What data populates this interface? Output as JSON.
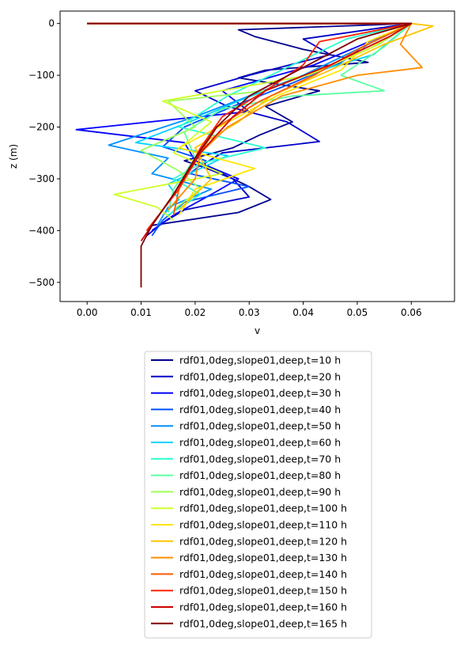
{
  "chart_data": {
    "type": "line",
    "title": "",
    "xlabel": "v",
    "ylabel": "z (m)",
    "xlim": [
      -0.005,
      0.068
    ],
    "ylim": [
      -537,
      24
    ],
    "xticks": [
      0.0,
      0.01,
      0.02,
      0.03,
      0.04,
      0.05,
      0.06
    ],
    "xtick_labels": [
      "0.00",
      "0.01",
      "0.02",
      "0.03",
      "0.04",
      "0.05",
      "0.06"
    ],
    "yticks": [
      0,
      -100,
      -200,
      -300,
      -400,
      -500
    ],
    "ytick_labels": [
      "0",
      "−100",
      "−200",
      "−300",
      "−400",
      "−500"
    ],
    "grid": false,
    "legend_position": "below-plot",
    "series": [
      {
        "name": "rdf01,0deg,slope01,deep,t=10 h",
        "color": "#00008f",
        "x": [
          0.0,
          0.06,
          0.028,
          0.031,
          0.04,
          0.052,
          0.033,
          0.028,
          0.043,
          0.033,
          0.038,
          0.032,
          0.027,
          0.018,
          0.025,
          0.03,
          0.034,
          0.028,
          0.012
        ],
        "y": [
          0,
          0,
          -12,
          -25,
          -50,
          -75,
          -90,
          -105,
          -130,
          -160,
          -190,
          -215,
          -240,
          -265,
          -290,
          -315,
          -340,
          -365,
          -390
        ]
      },
      {
        "name": "rdf01,0deg,slope01,deep,t=20 h",
        "color": "#0000c8",
        "x": [
          0.0,
          0.06,
          0.04,
          0.045,
          0.03,
          0.02,
          0.026,
          0.037,
          0.043,
          0.025,
          0.021,
          0.027,
          0.03,
          0.018,
          0.014,
          0.011
        ],
        "y": [
          0,
          0,
          -30,
          -60,
          -100,
          -130,
          -160,
          -190,
          -228,
          -250,
          -275,
          -300,
          -335,
          -360,
          -385,
          -410
        ]
      },
      {
        "name": "rdf01,0deg,slope01,deep,t=30 h",
        "color": "#0000ff",
        "x": [
          0.0,
          0.06,
          0.05,
          0.042,
          0.025,
          0.03,
          -0.002,
          0.018,
          0.02,
          0.028,
          0.023,
          0.016,
          0.012
        ],
        "y": [
          0,
          0,
          -45,
          -80,
          -130,
          -170,
          -205,
          -230,
          -265,
          -300,
          -330,
          -370,
          -400
        ]
      },
      {
        "name": "rdf01,0deg,slope01,deep,t=40 h",
        "color": "#0050ff",
        "x": [
          0.0,
          0.06,
          0.052,
          0.047,
          0.038,
          0.027,
          0.018,
          0.014,
          0.022,
          0.019,
          0.03,
          0.018,
          0.014,
          0.012
        ],
        "y": [
          0,
          0,
          -40,
          -75,
          -115,
          -160,
          -200,
          -238,
          -265,
          -290,
          -315,
          -345,
          -380,
          -410
        ]
      },
      {
        "name": "rdf01,0deg,slope01,deep,t=50 h",
        "color": "#0090ff",
        "x": [
          0.0,
          0.06,
          0.05,
          0.04,
          0.03,
          0.02,
          0.004,
          0.015,
          0.012,
          0.023,
          0.015,
          0.013
        ],
        "y": [
          0,
          0,
          -50,
          -100,
          -140,
          -180,
          -235,
          -260,
          -290,
          -320,
          -355,
          -390
        ]
      },
      {
        "name": "rdf01,0deg,slope01,deep,t=60 h",
        "color": "#00d4ff",
        "x": [
          0.0,
          0.06,
          0.053,
          0.04,
          0.028,
          0.019,
          0.009,
          0.026,
          0.02,
          0.015,
          0.017,
          0.014
        ],
        "y": [
          0,
          0,
          -60,
          -100,
          -150,
          -190,
          -230,
          -255,
          -285,
          -310,
          -340,
          -370
        ]
      },
      {
        "name": "rdf01,0deg,slope01,deep,t=70 h",
        "color": "#29ffce",
        "x": [
          0.0,
          0.06,
          0.048,
          0.037,
          0.026,
          0.017,
          0.033,
          0.021,
          0.016,
          0.021,
          0.015
        ],
        "y": [
          0,
          0,
          -30,
          -85,
          -140,
          -200,
          -240,
          -270,
          -300,
          -330,
          -370
        ]
      },
      {
        "name": "rdf01,0deg,slope01,deep,t=80 h",
        "color": "#5cffa0",
        "x": [
          0.0,
          0.06,
          0.055,
          0.047,
          0.055,
          0.038,
          0.025,
          0.018,
          0.02,
          0.016,
          0.015
        ],
        "y": [
          0,
          0,
          -45,
          -100,
          -130,
          -140,
          -165,
          -210,
          -260,
          -320,
          -365
        ]
      },
      {
        "name": "rdf01,0deg,slope01,deep,t=90 h",
        "color": "#9cff5a",
        "x": [
          0.0,
          0.06,
          0.054,
          0.043,
          0.033,
          0.015,
          0.02,
          0.01,
          0.017,
          0.021,
          0.016
        ],
        "y": [
          0,
          0,
          -40,
          -90,
          -130,
          -150,
          -200,
          -245,
          -285,
          -320,
          -360
        ]
      },
      {
        "name": "rdf01,0deg,slope01,deep,t=100 h",
        "color": "#ceff29",
        "x": [
          0.0,
          0.06,
          0.052,
          0.041,
          0.014,
          0.023,
          0.016,
          0.025,
          0.005,
          0.013,
          0.016
        ],
        "y": [
          0,
          0,
          -50,
          -100,
          -150,
          -190,
          -250,
          -290,
          -330,
          -355,
          -380
        ]
      },
      {
        "name": "rdf01,0deg,slope01,deep,t=110 h",
        "color": "#ffe600",
        "x": [
          0.0,
          0.06,
          0.052,
          0.047,
          0.035,
          0.028,
          0.017,
          0.031,
          0.02,
          0.017
        ],
        "y": [
          0,
          0,
          -35,
          -90,
          -140,
          -180,
          -240,
          -280,
          -320,
          -370
        ]
      },
      {
        "name": "rdf01,0deg,slope01,deep,t=120 h",
        "color": "#ffc400",
        "x": [
          0.0,
          0.06,
          0.064,
          0.055,
          0.045,
          0.034,
          0.028,
          0.02,
          0.023,
          0.017
        ],
        "y": [
          0,
          0,
          -5,
          -40,
          -90,
          -140,
          -190,
          -240,
          -300,
          -360
        ]
      },
      {
        "name": "rdf01,0deg,slope01,deep,t=130 h",
        "color": "#ff8d00",
        "x": [
          0.0,
          0.06,
          0.058,
          0.062,
          0.05,
          0.036,
          0.026,
          0.021,
          0.02,
          0.015
        ],
        "y": [
          0,
          0,
          -40,
          -85,
          -100,
          -140,
          -200,
          -250,
          -300,
          -360
        ]
      },
      {
        "name": "rdf01,0deg,slope01,deep,t=140 h",
        "color": "#ff5b00",
        "x": [
          0.0,
          0.06,
          0.051,
          0.042,
          0.032,
          0.024,
          0.021,
          0.017,
          0.016
        ],
        "y": [
          0,
          0,
          -45,
          -100,
          -150,
          -200,
          -250,
          -320,
          -370
        ]
      },
      {
        "name": "rdf01,0deg,slope01,deep,t=150 h",
        "color": "#ff2200",
        "x": [
          0.0,
          0.06,
          0.043,
          0.04,
          0.033,
          0.025,
          0.021,
          0.017,
          0.011
        ],
        "y": [
          0,
          0,
          -35,
          -80,
          -130,
          -180,
          -240,
          -320,
          -400
        ]
      },
      {
        "name": "rdf01,0deg,slope01,deep,t=160 h",
        "color": "#d10000",
        "x": [
          0.0,
          0.06,
          0.056,
          0.045,
          0.033,
          0.027,
          0.021,
          0.016,
          0.01
        ],
        "y": [
          0,
          0,
          -25,
          -80,
          -130,
          -180,
          -250,
          -330,
          -420
        ]
      },
      {
        "name": "rdf01,0deg,slope01,deep,t=165 h",
        "color": "#7f0000",
        "x": [
          0.0,
          0.06,
          0.05,
          0.04,
          0.03,
          0.024,
          0.02,
          0.016,
          0.012,
          0.01,
          0.01
        ],
        "y": [
          0,
          0,
          -30,
          -85,
          -140,
          -200,
          -260,
          -330,
          -390,
          -430,
          -510
        ]
      }
    ]
  }
}
